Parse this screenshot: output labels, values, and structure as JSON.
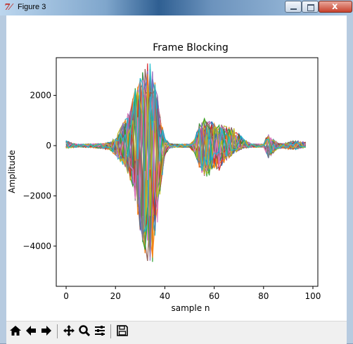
{
  "window": {
    "title": "Figure 3",
    "app_icon_glyph": "7́"
  },
  "toolbar": {
    "items": [
      {
        "name": "home-button",
        "icon": "home-icon"
      },
      {
        "name": "back-button",
        "icon": "arrow-left-icon"
      },
      {
        "name": "forward-button",
        "icon": "arrow-right-icon"
      },
      {
        "name": "pan-button",
        "icon": "move-icon"
      },
      {
        "name": "zoom-button",
        "icon": "zoom-icon"
      },
      {
        "name": "configure-subplots-button",
        "icon": "sliders-icon"
      },
      {
        "name": "save-button",
        "icon": "floppy-disk-icon"
      }
    ]
  },
  "chart_data": {
    "type": "line",
    "title": "Frame Blocking",
    "xlabel": "sample n",
    "ylabel": "Amplitude",
    "xlim": [
      -4,
      102
    ],
    "ylim": [
      -5600,
      3500
    ],
    "xticks": [
      0,
      20,
      40,
      60,
      80,
      100
    ],
    "yticks": [
      2000,
      0,
      -2000,
      -4000
    ],
    "ytick_labels": [
      "2000",
      "0",
      "−2000",
      "−4000"
    ],
    "grid": false,
    "legend": "none",
    "series_count": 40,
    "x_range": [
      0,
      97
    ],
    "envelope": {
      "x": [
        0,
        3,
        5,
        10,
        15,
        18,
        20,
        22,
        24,
        26,
        28,
        30,
        32,
        34,
        36,
        38,
        40,
        42,
        45,
        50,
        52,
        54,
        56,
        58,
        60,
        62,
        64,
        66,
        68,
        70,
        72,
        75,
        80,
        81,
        82,
        84,
        86,
        88,
        90,
        93,
        95,
        97
      ],
      "upper": [
        200,
        80,
        60,
        70,
        80,
        150,
        300,
        700,
        1100,
        1500,
        2300,
        2700,
        3300,
        3300,
        2800,
        1200,
        300,
        80,
        60,
        60,
        250,
        900,
        1100,
        1000,
        900,
        850,
        800,
        750,
        700,
        500,
        250,
        70,
        60,
        300,
        450,
        250,
        100,
        80,
        150,
        200,
        180,
        150
      ],
      "lower": [
        -100,
        -80,
        -60,
        -80,
        -120,
        -200,
        -400,
        -700,
        -900,
        -1400,
        -2200,
        -3500,
        -4400,
        -5400,
        -4300,
        -2000,
        -400,
        -100,
        -70,
        -70,
        -300,
        -900,
        -1300,
        -1200,
        -900,
        -1000,
        -700,
        -500,
        -300,
        -200,
        -100,
        -70,
        -60,
        -300,
        -500,
        -300,
        -120,
        -100,
        -150,
        -150,
        -100,
        -80
      ]
    },
    "colors": [
      "#1f77b4",
      "#ff7f0e",
      "#2ca02c",
      "#d62728",
      "#9467bd",
      "#8c564b",
      "#e377c2",
      "#7f7f7f",
      "#bcbd22",
      "#17becf"
    ]
  }
}
